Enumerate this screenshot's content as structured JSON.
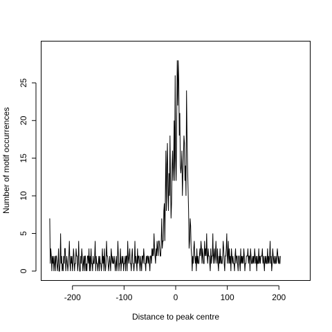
{
  "chart_data": {
    "type": "line",
    "title": "",
    "xlabel": "Distance to peak centre",
    "ylabel": "Number of motif occurrences",
    "xlim": [
      -260,
      260
    ],
    "ylim": [
      -1.2,
      30.5
    ],
    "x_ticks": [
      -200,
      -100,
      0,
      100,
      200
    ],
    "x_tick_labels": [
      "-200",
      "-100",
      "0",
      "100",
      "200"
    ],
    "y_ticks": [
      0,
      5,
      10,
      15,
      20,
      25
    ],
    "y_tick_labels": [
      "0",
      "5",
      "10",
      "15",
      "20",
      "25"
    ],
    "grid": false,
    "line_color": "#000000",
    "series": [
      {
        "x_start": -244,
        "x_step": 1,
        "values": [
          7,
          1,
          3,
          2,
          0,
          2,
          1,
          2,
          0,
          1,
          2,
          0,
          2,
          2,
          1,
          0,
          1,
          3,
          0,
          0,
          1,
          5,
          1,
          2,
          0,
          1,
          0,
          2,
          1,
          3,
          3,
          0,
          1,
          2,
          1,
          0,
          1,
          2,
          4,
          1,
          0,
          2,
          1,
          2,
          0,
          1,
          3,
          2,
          0,
          1,
          1,
          3,
          2,
          2,
          0,
          1,
          4,
          1,
          0,
          0,
          2,
          1,
          3,
          2,
          0,
          1,
          2,
          0,
          2,
          2,
          0,
          1,
          0,
          2,
          2,
          1,
          3,
          0,
          2,
          0,
          3,
          1,
          1,
          0,
          2,
          1,
          1,
          2,
          4,
          0,
          2,
          1,
          1,
          0,
          1,
          2,
          0,
          2,
          1,
          1,
          0,
          1,
          3,
          1,
          2,
          0,
          3,
          1,
          0,
          1,
          4,
          2,
          2,
          1,
          0,
          1,
          2,
          1,
          0,
          3,
          2,
          1,
          2,
          1,
          1,
          2,
          1,
          0,
          1,
          2,
          0,
          1,
          4,
          2,
          0,
          1,
          1,
          3,
          0,
          1,
          2,
          1,
          2,
          0,
          1,
          1,
          2,
          0,
          2,
          2,
          0,
          4,
          2,
          1,
          2,
          3,
          1,
          1,
          0,
          2,
          3,
          1,
          1,
          0,
          1,
          4,
          1,
          2,
          1,
          0,
          3,
          1,
          2,
          2,
          1,
          0,
          2,
          1,
          0,
          2,
          2,
          1,
          3,
          2,
          1,
          1,
          0,
          2,
          1,
          2,
          2,
          1,
          2,
          1,
          0,
          2,
          2,
          1,
          3,
          2,
          3,
          2,
          5,
          3,
          2,
          1,
          3,
          2,
          4,
          3,
          2,
          4,
          4,
          3,
          2,
          2,
          4,
          7,
          3,
          4,
          4,
          8,
          9,
          4,
          10,
          16,
          8,
          14,
          17,
          10,
          8,
          13,
          10,
          18,
          12,
          7,
          9,
          14,
          16,
          12,
          14,
          20,
          12,
          26,
          15,
          12,
          20,
          28,
          22,
          28,
          25,
          18,
          21,
          14,
          13,
          14,
          16,
          10,
          13,
          15,
          18,
          17,
          12,
          14,
          10,
          24,
          18,
          14,
          11,
          8,
          3,
          4,
          7,
          6,
          3,
          2,
          0,
          2,
          1,
          3,
          4,
          2,
          1,
          2,
          0,
          3,
          1,
          2,
          1,
          1,
          2,
          3,
          2,
          4,
          3,
          1,
          3,
          2,
          1,
          1,
          4,
          2,
          3,
          2,
          5,
          2,
          1,
          3,
          2,
          2,
          1,
          0,
          3,
          1,
          2,
          2,
          5,
          1,
          2,
          3,
          1,
          2,
          4,
          2,
          1,
          3,
          1,
          0,
          2,
          1,
          3,
          1,
          2,
          1,
          1,
          2,
          4,
          3,
          1,
          0,
          2,
          2,
          3,
          5,
          1,
          2,
          4,
          1,
          3,
          1,
          2,
          0,
          3,
          2,
          1,
          2,
          1,
          1,
          0,
          2,
          3,
          1,
          2,
          2,
          1,
          0,
          2,
          2,
          1,
          0,
          3,
          1,
          2,
          1,
          2,
          1,
          3,
          2,
          0,
          1,
          1,
          2,
          2,
          2,
          3,
          1,
          2,
          2,
          0,
          3,
          2,
          1,
          1,
          2,
          1,
          2,
          1,
          3,
          2,
          1,
          2,
          0,
          2,
          1,
          1,
          3,
          1,
          2,
          1,
          2,
          2,
          2,
          3,
          1,
          2,
          1,
          0,
          2,
          1,
          2,
          1,
          1,
          3,
          1,
          2,
          1,
          2,
          4,
          1,
          2,
          0,
          1,
          3,
          2,
          1,
          2,
          1,
          1,
          2,
          1,
          2,
          3,
          2,
          1,
          2,
          1,
          1,
          2
        ]
      }
    ]
  }
}
